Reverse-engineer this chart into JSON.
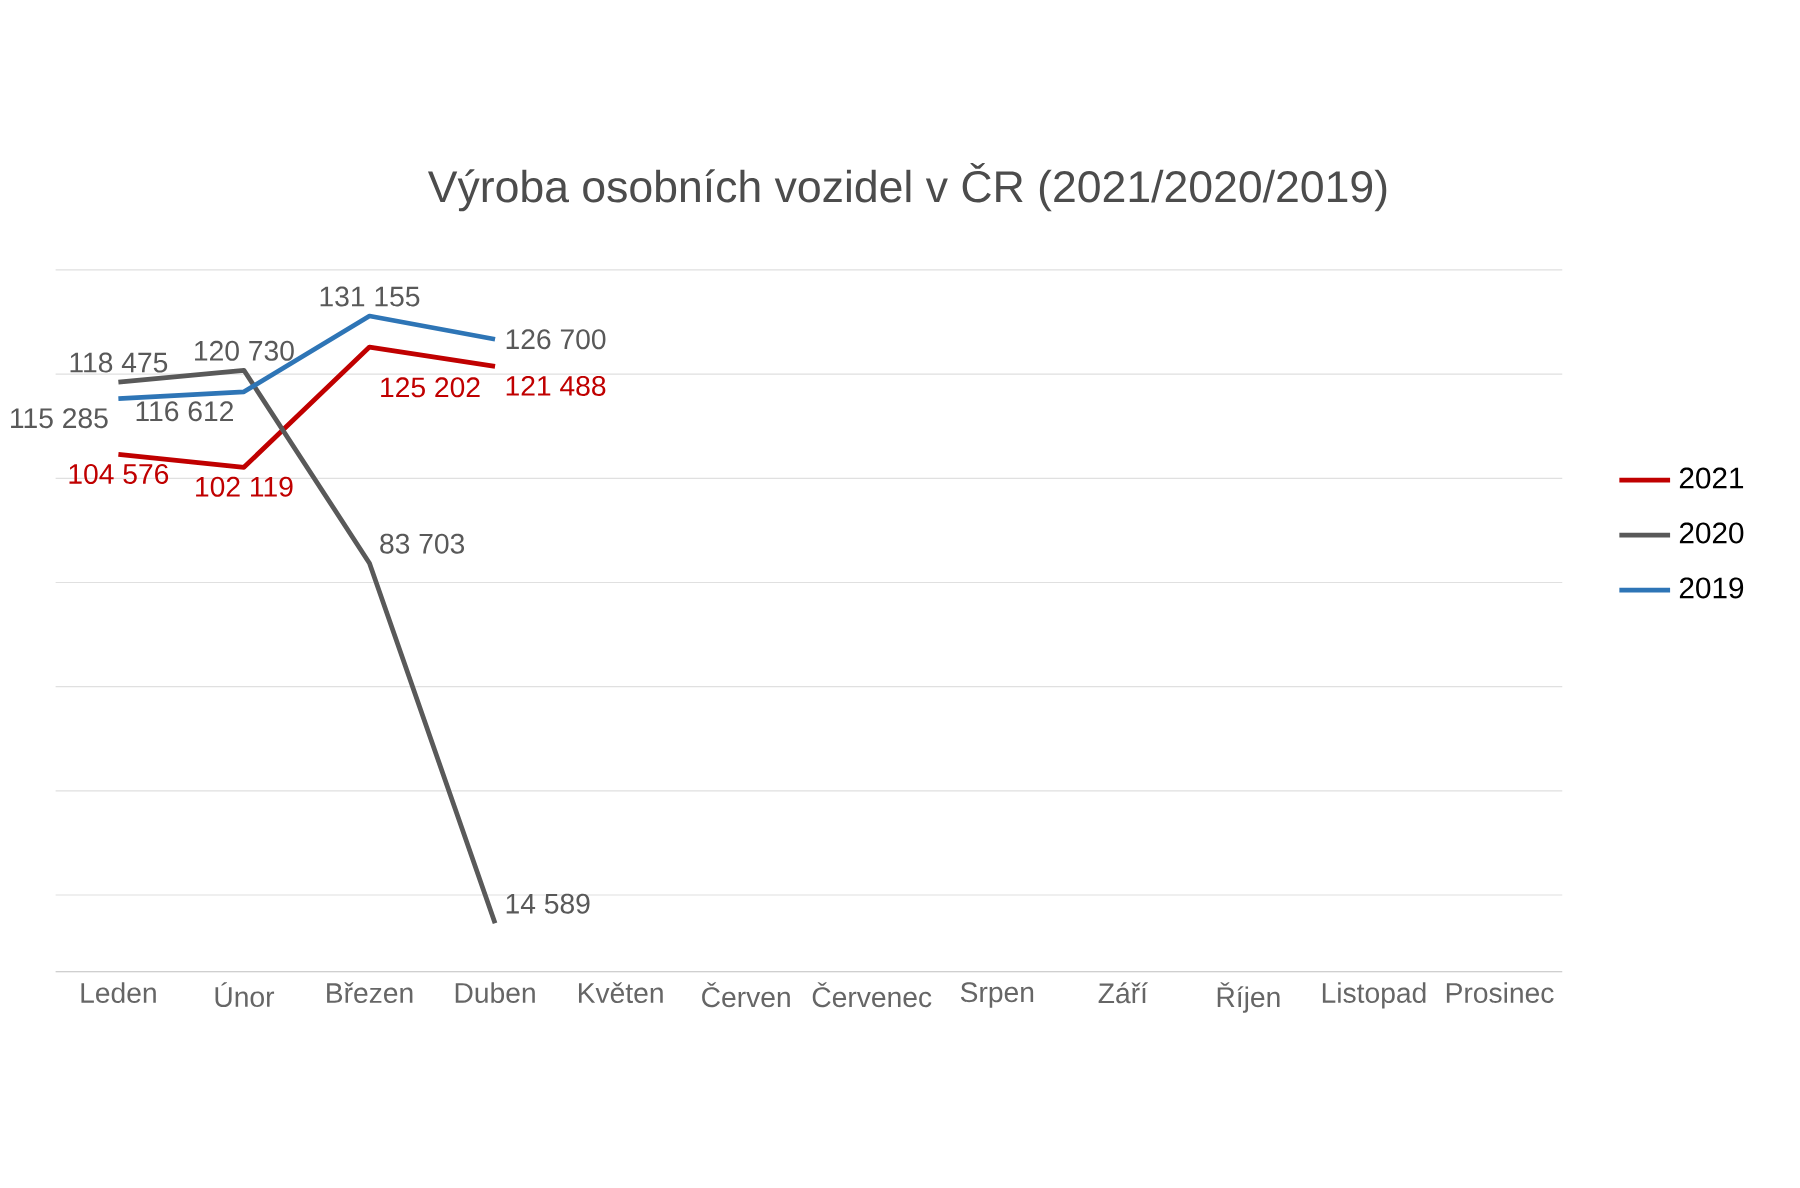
{
  "chart_data": {
    "type": "line",
    "title": "Výroba osobních vozidel v ČR (2021/2020/2019)",
    "categories": [
      "Leden",
      "Únor",
      "Březen",
      "Duben",
      "Květen",
      "Červen",
      "Červenec",
      "Srpen",
      "Září",
      "Říjen",
      "Listopad",
      "Prosinec"
    ],
    "series": [
      {
        "name": "2021",
        "color": "#c00000",
        "values": [
          104576,
          102119,
          125202,
          121488,
          null,
          null,
          null,
          null,
          null,
          null,
          null,
          null
        ],
        "value_labels": [
          "104 576",
          "102 119",
          "125 202",
          "121 488",
          null,
          null,
          null,
          null,
          null,
          null,
          null,
          null
        ]
      },
      {
        "name": "2020",
        "color": "#595959",
        "values": [
          118475,
          120730,
          83703,
          14589,
          null,
          null,
          null,
          null,
          null,
          null,
          null,
          null
        ],
        "value_labels": [
          "118 475",
          "120 730",
          "83 703",
          "14 589",
          null,
          null,
          null,
          null,
          null,
          null,
          null,
          null
        ]
      },
      {
        "name": "2019",
        "color": "#2e75b6",
        "values": [
          115285,
          116612,
          131155,
          126700,
          null,
          null,
          null,
          null,
          null,
          null,
          null,
          null
        ],
        "value_labels": [
          "115 285",
          "116 612",
          "131 155",
          "126 700",
          null,
          null,
          null,
          null,
          null,
          null,
          null,
          null
        ]
      }
    ],
    "tick_labels": "x",
    "grid": "y",
    "legend": "right",
    "marker": "none",
    "line_style": "solid"
  }
}
